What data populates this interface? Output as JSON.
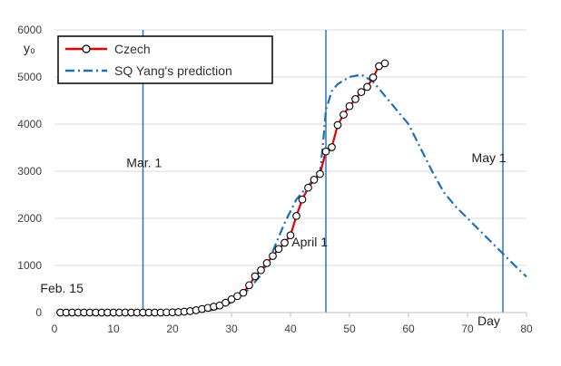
{
  "chart_data": {
    "type": "line",
    "title": "",
    "xlabel": "Day",
    "ylabel": "y₀",
    "xlim": [
      0,
      80
    ],
    "ylim": [
      0,
      6000
    ],
    "x_ticks": [
      0,
      10,
      20,
      30,
      40,
      50,
      60,
      70,
      80
    ],
    "y_ticks": [
      0,
      1000,
      2000,
      3000,
      4000,
      5000,
      6000
    ],
    "grid": "horizontal",
    "legend_position": "top-left",
    "colors": {
      "czech": "#e00000",
      "prediction": "#1f6fb2",
      "vlines": "#2e75b6",
      "grid": "#d9d9d9"
    },
    "series": [
      {
        "name": "Czech",
        "style": "line-with-circle-markers",
        "x": [
          1,
          2,
          3,
          4,
          5,
          6,
          7,
          8,
          9,
          10,
          11,
          12,
          13,
          14,
          15,
          16,
          17,
          18,
          19,
          20,
          21,
          22,
          23,
          24,
          25,
          26,
          27,
          28,
          29,
          30,
          31,
          32,
          33,
          34,
          35,
          36,
          37,
          38,
          39,
          40,
          41,
          42,
          43,
          44,
          45,
          46,
          47,
          48,
          49,
          50,
          51,
          52,
          53,
          54,
          55,
          56
        ],
        "y": [
          0,
          0,
          0,
          0,
          0,
          0,
          0,
          0,
          0,
          0,
          0,
          0,
          0,
          0,
          0,
          0,
          0,
          0,
          3,
          5,
          10,
          20,
          30,
          50,
          75,
          100,
          125,
          150,
          210,
          280,
          350,
          420,
          580,
          770,
          900,
          1050,
          1200,
          1350,
          1480,
          1640,
          2050,
          2400,
          2650,
          2820,
          2940,
          3420,
          3510,
          3980,
          4200,
          4380,
          4530,
          4680,
          4790,
          4990,
          5230,
          5290
        ]
      },
      {
        "name": "SQ Yang's prediction",
        "style": "dash-dot",
        "x": [
          20,
          23,
          25,
          27,
          29,
          31,
          33,
          35,
          37,
          39,
          41,
          43,
          45,
          45.6,
          46,
          47,
          48,
          50,
          52,
          54,
          56,
          58,
          60,
          62,
          64,
          66,
          68,
          70,
          72,
          74,
          76,
          78,
          80
        ],
        "y": [
          0,
          5,
          20,
          60,
          150,
          300,
          500,
          800,
          1300,
          1900,
          2400,
          2700,
          2950,
          3700,
          4300,
          4700,
          4850,
          5000,
          5050,
          4900,
          4600,
          4300,
          4000,
          3500,
          3000,
          2550,
          2250,
          2000,
          1750,
          1500,
          1250,
          1000,
          760
        ]
      }
    ],
    "vertical_lines": [
      {
        "x": 15,
        "label": "Mar. 1",
        "label_x": 12.2,
        "label_y": 3090
      },
      {
        "x": 46,
        "label": "April 1",
        "label_x": 40.2,
        "label_y": 1400
      },
      {
        "x": 76,
        "label": "May 1",
        "label_x": 70.7,
        "label_y": 3190
      }
    ],
    "annotations": [
      {
        "text": "Feb. 15",
        "x": -2.4,
        "y": 420
      }
    ]
  }
}
